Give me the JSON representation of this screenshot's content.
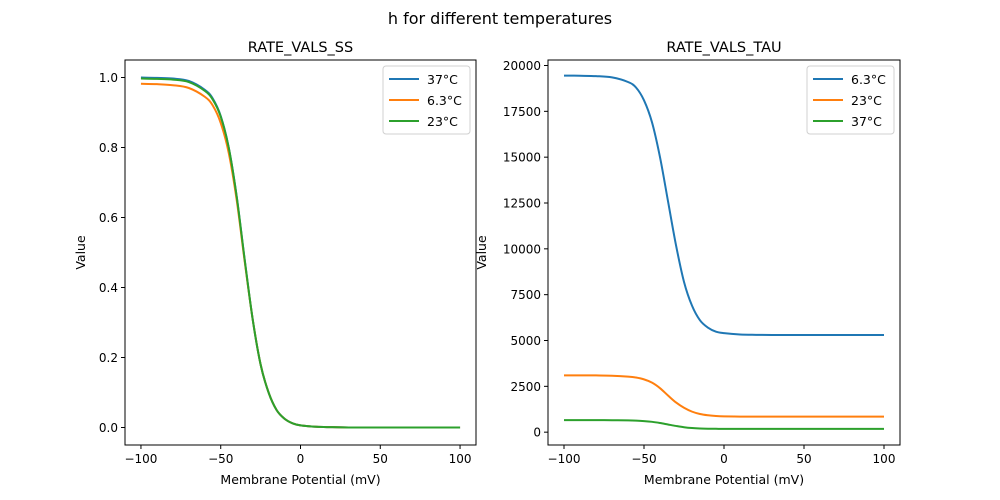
{
  "chart_data": [
    {
      "type": "line",
      "suptitle": "h for different temperatures",
      "title": "RATE_VALS_SS",
      "xlabel": "Membrane Potential (mV)",
      "ylabel": "Value",
      "xlim": [
        -110,
        110
      ],
      "ylim": [
        -0.05,
        1.05
      ],
      "xticks": [
        -100,
        -50,
        0,
        50,
        100
      ],
      "xtick_labels": [
        "−100",
        "−50",
        "0",
        "50",
        "100"
      ],
      "yticks": [
        0.0,
        0.2,
        0.4,
        0.6,
        0.8,
        1.0
      ],
      "ytick_labels": [
        "0.0",
        "0.2",
        "0.4",
        "0.6",
        "0.8",
        "1.0"
      ],
      "grid": false,
      "legend_position": "top-right",
      "x": [
        -100,
        -90,
        -80,
        -70,
        -60,
        -55,
        -50,
        -45,
        -40,
        -35,
        -30,
        -25,
        -20,
        -15,
        -10,
        -5,
        0,
        10,
        20,
        30,
        50,
        75,
        100
      ],
      "series": [
        {
          "name": "37°C",
          "color": "#1f77b4",
          "values": [
            1.0,
            0.999,
            0.997,
            0.99,
            0.965,
            0.94,
            0.89,
            0.8,
            0.66,
            0.48,
            0.31,
            0.18,
            0.1,
            0.05,
            0.025,
            0.012,
            0.006,
            0.002,
            0.001,
            0.0,
            0.0,
            0.0,
            0.0
          ]
        },
        {
          "name": "6.3°C",
          "color": "#ff7f0e",
          "values": [
            0.982,
            0.981,
            0.978,
            0.97,
            0.945,
            0.92,
            0.87,
            0.785,
            0.65,
            0.475,
            0.31,
            0.18,
            0.1,
            0.05,
            0.025,
            0.012,
            0.006,
            0.002,
            0.001,
            0.0,
            0.0,
            0.0,
            0.0
          ]
        },
        {
          "name": "23°C",
          "color": "#2ca02c",
          "values": [
            0.997,
            0.996,
            0.994,
            0.987,
            0.962,
            0.937,
            0.888,
            0.8,
            0.66,
            0.48,
            0.31,
            0.18,
            0.1,
            0.05,
            0.025,
            0.012,
            0.006,
            0.002,
            0.001,
            0.0,
            0.0,
            0.0,
            0.0
          ]
        }
      ]
    },
    {
      "type": "line",
      "title": "RATE_VALS_TAU",
      "xlabel": "Membrane Potential (mV)",
      "ylabel": "Value",
      "xlim": [
        -110,
        110
      ],
      "ylim": [
        -700,
        20300
      ],
      "xticks": [
        -100,
        -50,
        0,
        50,
        100
      ],
      "xtick_labels": [
        "−100",
        "−50",
        "0",
        "50",
        "100"
      ],
      "yticks": [
        0,
        2500,
        5000,
        7500,
        10000,
        12500,
        15000,
        17500,
        20000
      ],
      "ytick_labels": [
        "0",
        "2500",
        "5000",
        "7500",
        "10000",
        "12500",
        "15000",
        "17500",
        "20000"
      ],
      "grid": false,
      "legend_position": "top-right",
      "x": [
        -100,
        -90,
        -80,
        -70,
        -60,
        -55,
        -50,
        -45,
        -40,
        -35,
        -30,
        -25,
        -20,
        -15,
        -10,
        -5,
        0,
        10,
        20,
        30,
        50,
        75,
        100
      ],
      "series": [
        {
          "name": "6.3°C",
          "color": "#1f77b4",
          "values": [
            19450,
            19440,
            19420,
            19350,
            19100,
            18800,
            18100,
            16900,
            15000,
            12600,
            10200,
            8200,
            6900,
            6100,
            5700,
            5480,
            5400,
            5330,
            5310,
            5300,
            5300,
            5300,
            5300
          ]
        },
        {
          "name": "23°C",
          "color": "#ff7f0e",
          "values": [
            3100,
            3100,
            3095,
            3080,
            3030,
            2980,
            2880,
            2700,
            2400,
            2000,
            1620,
            1330,
            1120,
            990,
            920,
            880,
            860,
            850,
            850,
            850,
            850,
            850,
            850
          ]
        },
        {
          "name": "37°C",
          "color": "#2ca02c",
          "values": [
            660,
            660,
            658,
            652,
            640,
            628,
            605,
            565,
            500,
            420,
            340,
            270,
            225,
            200,
            188,
            183,
            180,
            180,
            180,
            180,
            180,
            180,
            180
          ]
        }
      ]
    }
  ]
}
